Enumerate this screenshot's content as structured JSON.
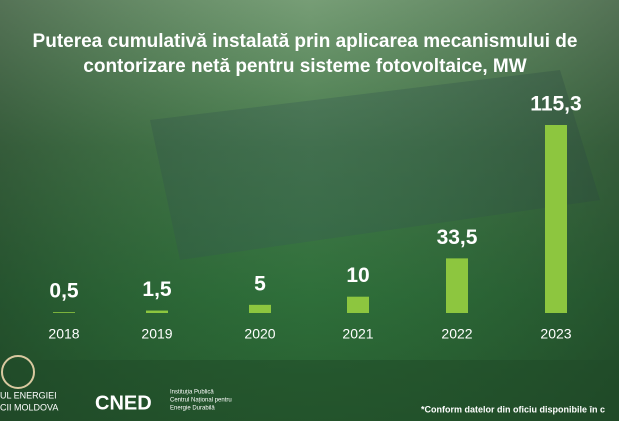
{
  "chart_data": {
    "type": "bar",
    "title": [
      "Puterea cumulativă instalată prin aplicarea mecanismului de",
      "contorizare netă pentru sisteme fotovoltaice, MW"
    ],
    "categories": [
      "2018",
      "2019",
      "2020",
      "2021",
      "2022",
      "2023"
    ],
    "values": [
      0.5,
      1.5,
      5,
      10,
      33.5,
      115.3
    ],
    "value_labels": [
      "0,5",
      "1,5",
      "5",
      "10",
      "33,5",
      "115,3"
    ],
    "color": "#8dc63f"
  },
  "footer": {
    "note": "*Conform datelor din oficiu disponibile în c",
    "logo_text": "CNED",
    "logo_caption": [
      "Instituția Publică",
      "Centrul Național pentru",
      "Energie Durabilă"
    ],
    "ministry": [
      "UL ENERGIEI",
      "CII MOLDOVA"
    ]
  }
}
